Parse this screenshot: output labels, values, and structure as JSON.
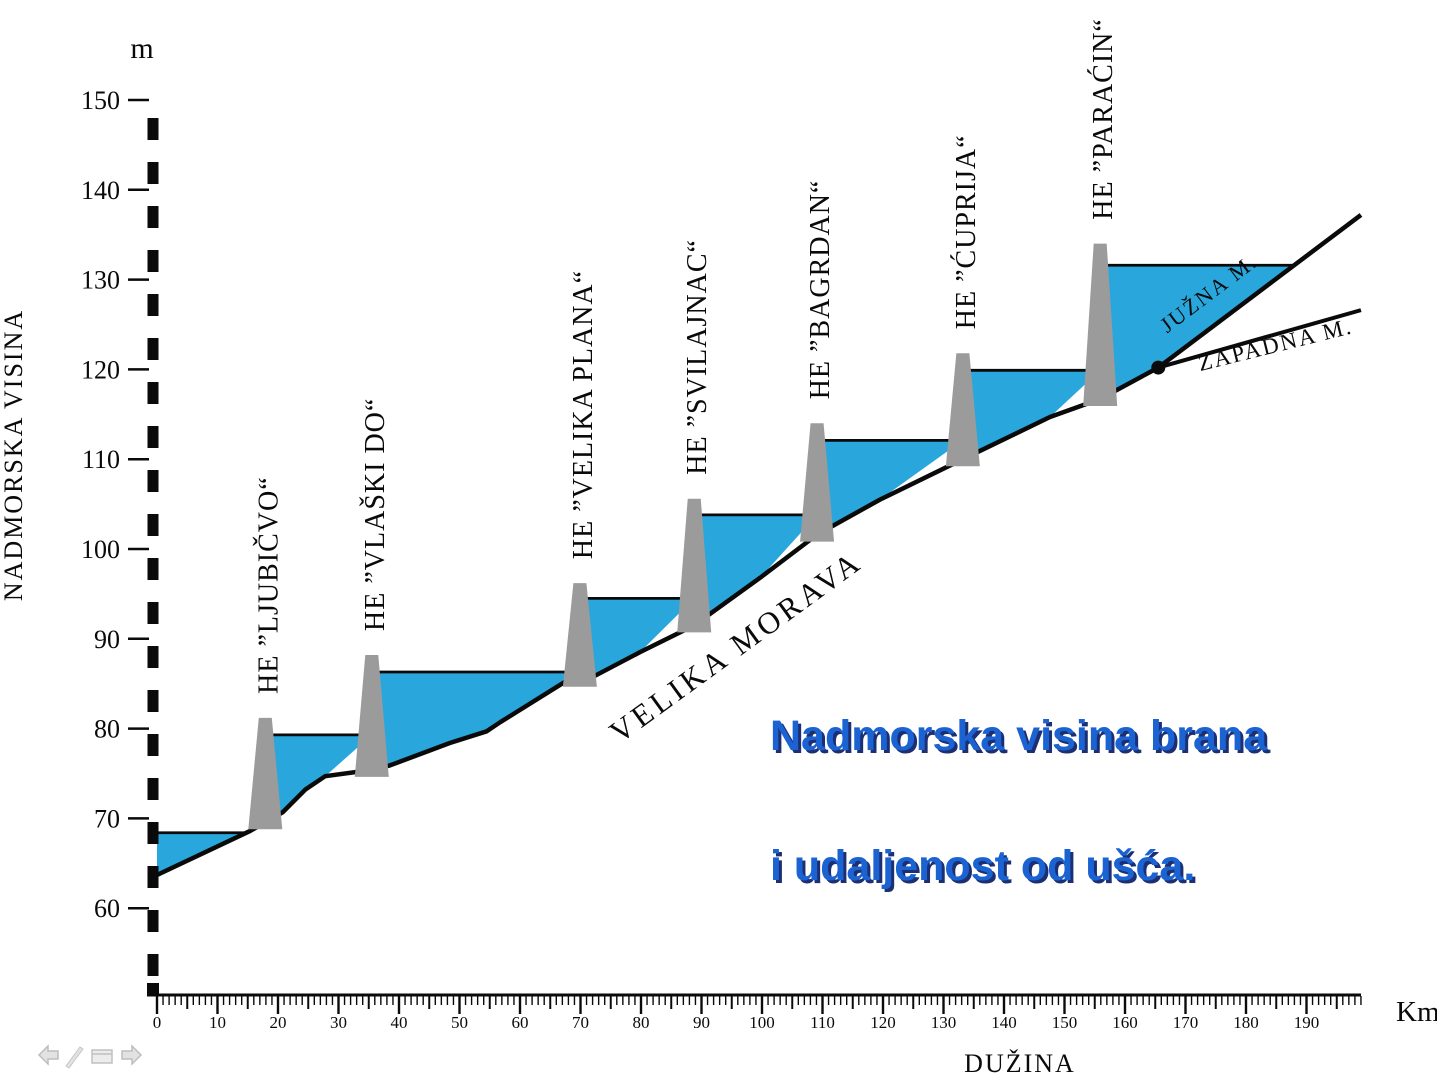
{
  "slide": {
    "captions": {
      "line1": "Nadmorska visina brana",
      "line2": "i udaljenost od ušća."
    }
  },
  "chart_data": {
    "type": "area",
    "title": "Nadmorska visina brana i udaljenost od ušća.",
    "ylabel": "NADMORSKA VISINA",
    "y_unit": "m",
    "xlabel": "DUŽINA",
    "x_unit": "Km",
    "ylim": [
      55,
      152
    ],
    "xlim": [
      0,
      205
    ],
    "y_ticks": [
      150,
      140,
      130,
      120,
      110,
      100,
      90,
      80,
      70,
      60
    ],
    "x_ticks": [
      0,
      10,
      20,
      30,
      40,
      50,
      60,
      70,
      80,
      90,
      100,
      110,
      120,
      130,
      140,
      150,
      160,
      170,
      180,
      190
    ],
    "river_label": "VELIKA MORAVA",
    "tributaries": [
      {
        "name": "JUŽNA M."
      },
      {
        "name": "ZAPADNA M."
      }
    ],
    "first_pool": {
      "level_m": 68.4,
      "from_km": 0
    },
    "dams": [
      {
        "name": "HE ”LJUBIČVO“",
        "distance_km": 17.9,
        "crest_m": 81.2,
        "pool_level_m": 79.3
      },
      {
        "name": "HE ”VLAŠKI DO“",
        "distance_km": 35.5,
        "crest_m": 88.2,
        "pool_level_m": 86.3
      },
      {
        "name": "HE ”VELIKA PLANA“",
        "distance_km": 69.9,
        "crest_m": 96.2,
        "pool_level_m": 94.5
      },
      {
        "name": "HE ”SVILAJNAC“",
        "distance_km": 88.8,
        "crest_m": 105.6,
        "pool_level_m": 103.8
      },
      {
        "name": "HE ”BAGRDAN“",
        "distance_km": 109.1,
        "crest_m": 114.0,
        "pool_level_m": 112.1
      },
      {
        "name": "HE ”ĆUPRIJA“",
        "distance_km": 133.2,
        "crest_m": 121.8,
        "pool_level_m": 119.9
      },
      {
        "name": "HE ”PARAĆIN“",
        "distance_km": 155.9,
        "crest_m": 134.0,
        "pool_level_m": 131.6
      }
    ],
    "riverbed_profile": [
      [
        0,
        63.7
      ],
      [
        15.4,
        68.6
      ],
      [
        20.8,
        70.7
      ],
      [
        24.5,
        73.2
      ],
      [
        27.8,
        74.7
      ],
      [
        35.5,
        75.4
      ],
      [
        38.5,
        75.9
      ],
      [
        48.4,
        78.4
      ],
      [
        54.5,
        79.7
      ],
      [
        56.7,
        80.7
      ],
      [
        67.4,
        85.2
      ],
      [
        71.6,
        85.6
      ],
      [
        79.8,
        88.5
      ],
      [
        88.8,
        91.5
      ],
      [
        99.7,
        96.8
      ],
      [
        109.1,
        101.6
      ],
      [
        119.5,
        105.5
      ],
      [
        133.2,
        110.0
      ],
      [
        147.6,
        114.7
      ],
      [
        155.9,
        116.7
      ],
      [
        165.5,
        120.2
      ],
      [
        199,
        137.2
      ]
    ],
    "confluence_point": [
      165.5,
      120.2
    ],
    "zapadna_morava_line": [
      [
        165.5,
        120.2
      ],
      [
        199,
        126.6
      ]
    ],
    "colors": {
      "water": "#29a7dc",
      "dam": "#9b9b9b",
      "line": "#0a0a0a",
      "caption_text": "#1b63d3",
      "caption_shadow": "#1c2f72"
    }
  },
  "nav": {
    "icons": [
      "back-arrow",
      "pen",
      "slide-menu",
      "forward-arrow"
    ]
  }
}
